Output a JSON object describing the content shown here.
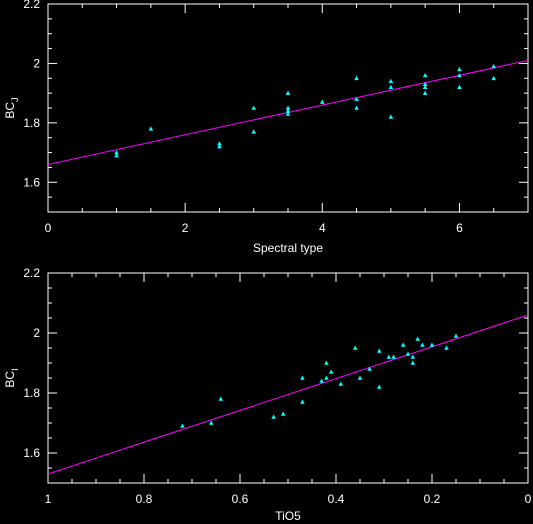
{
  "chart_data": [
    {
      "type": "scatter",
      "xlabel": "Spectral type",
      "ylabel_main": "BC",
      "ylabel_sub": "J",
      "xlim": [
        0,
        7
      ],
      "ylim": [
        1.5,
        2.2
      ],
      "xticks": [
        0,
        2,
        4,
        6
      ],
      "yticks": [
        1.6,
        1.8,
        2.0,
        2.2
      ],
      "xtick_labels": [
        "0",
        "2",
        "4",
        "6"
      ],
      "ytick_labels": [
        "1.6",
        "1.8",
        "2",
        "2.2"
      ],
      "fit_line": {
        "x": [
          0,
          7
        ],
        "y": [
          1.66,
          2.01
        ]
      },
      "points": [
        {
          "x": 1.0,
          "y": 1.69
        },
        {
          "x": 1.0,
          "y": 1.7
        },
        {
          "x": 1.5,
          "y": 1.78
        },
        {
          "x": 2.5,
          "y": 1.72
        },
        {
          "x": 2.5,
          "y": 1.73
        },
        {
          "x": 3.0,
          "y": 1.85
        },
        {
          "x": 3.0,
          "y": 1.77
        },
        {
          "x": 3.5,
          "y": 1.9
        },
        {
          "x": 3.5,
          "y": 1.85
        },
        {
          "x": 3.5,
          "y": 1.84
        },
        {
          "x": 3.5,
          "y": 1.83
        },
        {
          "x": 4.0,
          "y": 1.87
        },
        {
          "x": 4.5,
          "y": 1.95
        },
        {
          "x": 4.5,
          "y": 1.88
        },
        {
          "x": 4.5,
          "y": 1.85
        },
        {
          "x": 5.0,
          "y": 1.94
        },
        {
          "x": 5.0,
          "y": 1.92
        },
        {
          "x": 5.0,
          "y": 1.82
        },
        {
          "x": 5.5,
          "y": 1.96
        },
        {
          "x": 5.5,
          "y": 1.93
        },
        {
          "x": 5.5,
          "y": 1.92
        },
        {
          "x": 5.5,
          "y": 1.9
        },
        {
          "x": 6.0,
          "y": 1.98
        },
        {
          "x": 6.0,
          "y": 1.96
        },
        {
          "x": 6.0,
          "y": 1.92
        },
        {
          "x": 6.5,
          "y": 1.99
        },
        {
          "x": 6.5,
          "y": 1.95
        }
      ]
    },
    {
      "type": "scatter",
      "xlabel": "TiO5",
      "ylabel_main": "BC",
      "ylabel_sub": "I",
      "xlim": [
        1,
        0
      ],
      "ylim": [
        1.5,
        2.2
      ],
      "xticks": [
        1,
        0.8,
        0.6,
        0.4,
        0.2,
        0
      ],
      "yticks": [
        1.6,
        1.8,
        2.0,
        2.2
      ],
      "xtick_labels": [
        "1",
        "0.8",
        "0.6",
        "0.4",
        "0.2",
        "0"
      ],
      "ytick_labels": [
        "1.6",
        "1.8",
        "2",
        "2.2"
      ],
      "fit_line": {
        "x": [
          1,
          0
        ],
        "y": [
          1.53,
          2.06
        ]
      },
      "points": [
        {
          "x": 0.72,
          "y": 1.69
        },
        {
          "x": 0.66,
          "y": 1.7
        },
        {
          "x": 0.64,
          "y": 1.78
        },
        {
          "x": 0.53,
          "y": 1.72
        },
        {
          "x": 0.51,
          "y": 1.73
        },
        {
          "x": 0.47,
          "y": 1.85
        },
        {
          "x": 0.47,
          "y": 1.77
        },
        {
          "x": 0.43,
          "y": 1.84
        },
        {
          "x": 0.42,
          "y": 1.9
        },
        {
          "x": 0.42,
          "y": 1.85
        },
        {
          "x": 0.41,
          "y": 1.87
        },
        {
          "x": 0.39,
          "y": 1.83
        },
        {
          "x": 0.36,
          "y": 1.95
        },
        {
          "x": 0.35,
          "y": 1.85
        },
        {
          "x": 0.33,
          "y": 1.88
        },
        {
          "x": 0.31,
          "y": 1.94
        },
        {
          "x": 0.31,
          "y": 1.82
        },
        {
          "x": 0.29,
          "y": 1.92
        },
        {
          "x": 0.28,
          "y": 1.92
        },
        {
          "x": 0.26,
          "y": 1.96
        },
        {
          "x": 0.25,
          "y": 1.93
        },
        {
          "x": 0.24,
          "y": 1.9
        },
        {
          "x": 0.24,
          "y": 1.92
        },
        {
          "x": 0.23,
          "y": 1.98
        },
        {
          "x": 0.22,
          "y": 1.96
        },
        {
          "x": 0.2,
          "y": 1.96
        },
        {
          "x": 0.17,
          "y": 1.95
        },
        {
          "x": 0.15,
          "y": 1.99
        }
      ]
    }
  ]
}
